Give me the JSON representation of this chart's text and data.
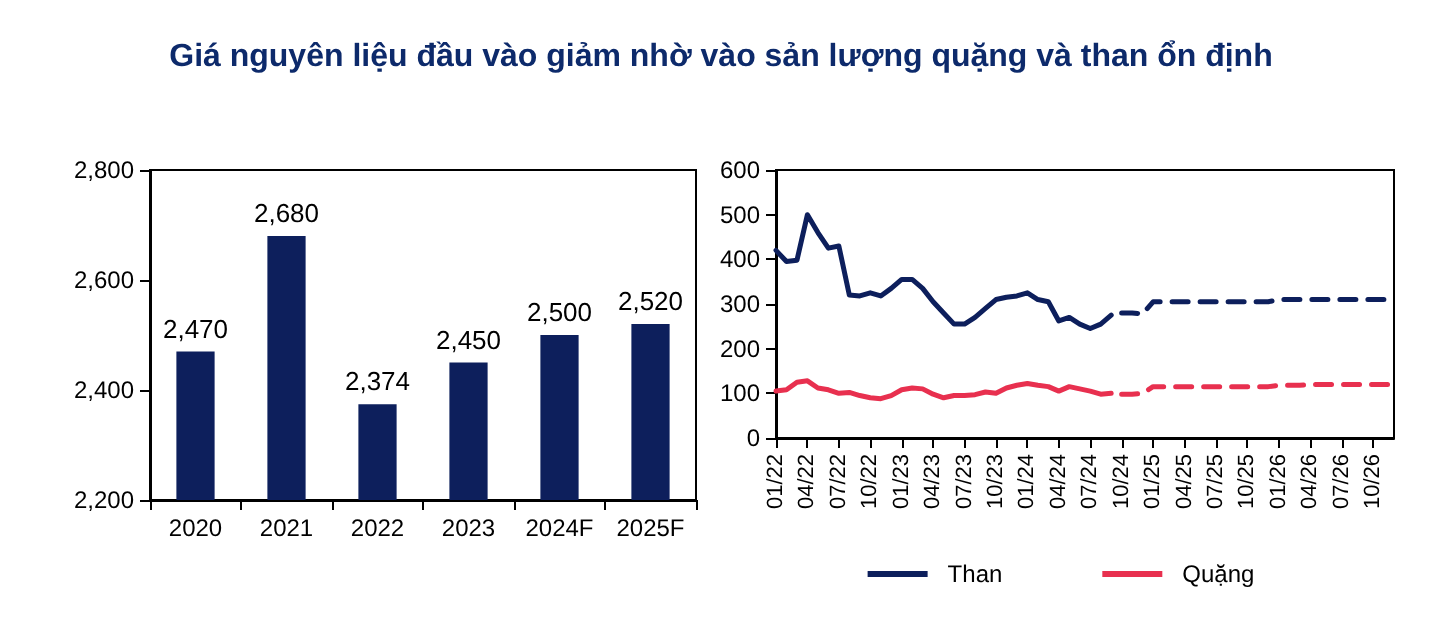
{
  "chart_data": [
    {
      "type": "bar",
      "title": "Giá nguyên liệu đầu vào giảm nhờ vào sản lượng quặng và than ổn định",
      "categories": [
        "2020",
        "2021",
        "2022",
        "2023",
        "2024F",
        "2025F"
      ],
      "values": [
        2470,
        2680,
        2374,
        2450,
        2500,
        2520
      ],
      "colors": [
        "#0d1f5c",
        "#0d1f5c",
        "#0d1f5c",
        "#0d1f5c",
        "#0d1f5c",
        "#0d1f5c"
      ],
      "ylim": [
        2200,
        2800
      ],
      "yticks": [
        {
          "value": 2200,
          "label": "2,200"
        },
        {
          "value": 2400,
          "label": "2,400"
        },
        {
          "value": 2600,
          "label": "2,600"
        },
        {
          "value": 2800,
          "label": "2,800"
        }
      ],
      "value_labels": [
        "2,470",
        "2,680",
        "2,374",
        "2,450",
        "2,500",
        "2,520"
      ],
      "grid": false,
      "legend": false
    },
    {
      "type": "line",
      "categories": [
        "01/22",
        null,
        null,
        "04/22",
        null,
        null,
        "07/22",
        null,
        null,
        "10/22",
        null,
        null,
        "01/23",
        null,
        null,
        "04/23",
        null,
        null,
        "07/23",
        null,
        null,
        "10/23",
        null,
        null,
        "01/24",
        null,
        null,
        "04/24",
        null,
        null,
        "07/24",
        null,
        null,
        "10/24",
        null,
        null,
        "01/25",
        null,
        null,
        "04/25",
        null,
        null,
        "07/25",
        null,
        null,
        "10/25",
        null,
        null,
        "01/26",
        null,
        null,
        "04/26",
        null,
        null,
        "07/26",
        null,
        null,
        "10/26",
        null,
        null
      ],
      "ylim": [
        0,
        600
      ],
      "yticks": [
        0,
        100,
        200,
        300,
        400,
        500,
        600
      ],
      "grid": false,
      "legend": "bottom",
      "marker": "none",
      "series": [
        {
          "name": "Than",
          "color": "#0d1f5c",
          "line_style": "solid",
          "values": [
            420,
            395,
            398,
            500,
            460,
            425,
            430,
            320,
            318,
            325,
            318,
            335,
            355,
            355,
            335,
            305,
            280,
            255,
            255,
            270,
            290,
            310,
            315,
            318,
            325,
            310,
            305,
            262,
            270,
            255,
            245,
            255,
            275,
            null,
            null,
            null,
            null,
            null,
            null,
            null,
            null,
            null,
            null,
            null,
            null,
            null,
            null,
            null,
            null,
            null,
            null,
            null,
            null,
            null,
            null,
            null,
            null,
            null,
            null,
            null
          ]
        },
        {
          "color": "#0d1f5c",
          "line_style": "dashed",
          "values": [
            null,
            null,
            null,
            null,
            null,
            null,
            null,
            null,
            null,
            null,
            null,
            null,
            null,
            null,
            null,
            null,
            null,
            null,
            null,
            null,
            null,
            null,
            null,
            null,
            null,
            null,
            null,
            null,
            null,
            null,
            null,
            null,
            null,
            280,
            280,
            278,
            305,
            305,
            305,
            305,
            305,
            305,
            305,
            305,
            305,
            305,
            305,
            305,
            310,
            310,
            310,
            310,
            310,
            310,
            310,
            310,
            310,
            310,
            310,
            310
          ]
        },
        {
          "name": "Quặng",
          "color": "#e8304f",
          "line_style": "solid",
          "values": [
            105,
            108,
            125,
            128,
            112,
            108,
            100,
            102,
            95,
            90,
            88,
            95,
            108,
            112,
            110,
            98,
            90,
            95,
            95,
            97,
            103,
            100,
            112,
            118,
            122,
            118,
            115,
            105,
            115,
            110,
            105,
            98,
            100,
            null,
            null,
            null,
            null,
            null,
            null,
            null,
            null,
            null,
            null,
            null,
            null,
            null,
            null,
            null,
            null,
            null,
            null,
            null,
            null,
            null,
            null,
            null,
            null,
            null,
            null,
            null
          ]
        },
        {
          "color": "#e8304f",
          "line_style": "dashed",
          "values": [
            null,
            null,
            null,
            null,
            null,
            null,
            null,
            null,
            null,
            null,
            null,
            null,
            null,
            null,
            null,
            null,
            null,
            null,
            null,
            null,
            null,
            null,
            null,
            null,
            null,
            null,
            null,
            null,
            null,
            null,
            null,
            null,
            null,
            98,
            98,
            100,
            115,
            115,
            115,
            115,
            115,
            115,
            115,
            115,
            115,
            115,
            115,
            115,
            118,
            118,
            118,
            120,
            120,
            120,
            120,
            120,
            120,
            120,
            120,
            120
          ]
        }
      ]
    }
  ]
}
